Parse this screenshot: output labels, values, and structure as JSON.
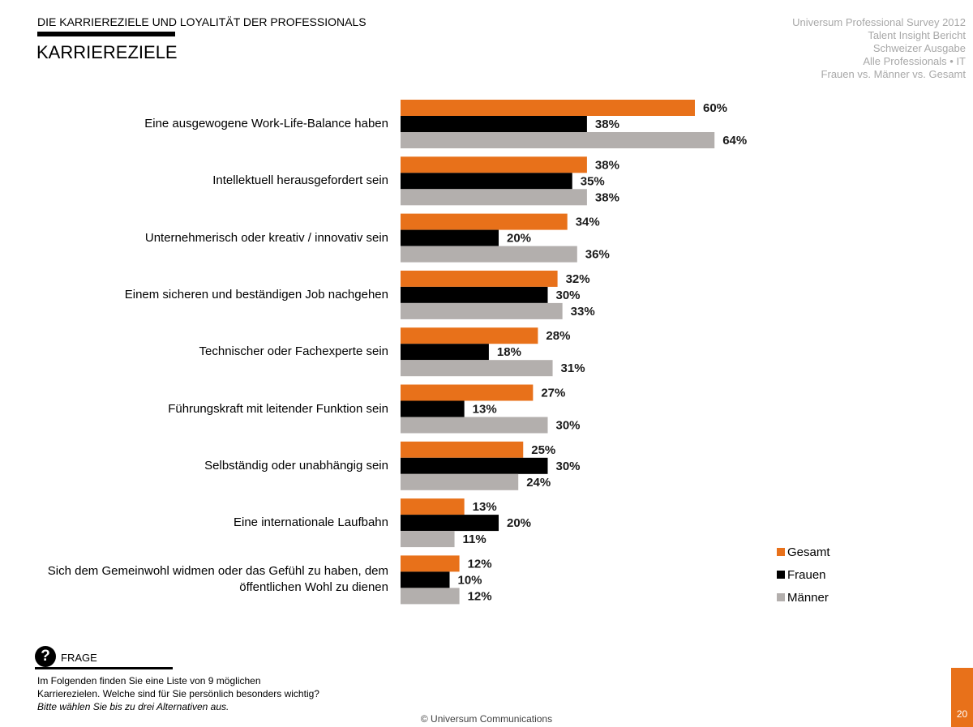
{
  "header": {
    "supertitle": "DIE KARRIEREZIELE UND LOYALITÄT DER PROFESSIONALS",
    "title": "KARRIEREZIELE",
    "meta": [
      "Universum Professional Survey 2012",
      "Talent Insight Bericht",
      "Schweizer Ausgabe",
      "Alle Professionals • IT",
      "Frauen vs. Männer vs. Gesamt"
    ]
  },
  "chart_data": {
    "type": "bar",
    "orientation": "horizontal",
    "value_suffix": "%",
    "categories": [
      "Eine ausgewogene Work-Life-Balance haben",
      "Intellektuell herausgefordert sein",
      "Unternehmerisch oder kreativ / innovativ sein",
      "Einem sicheren und beständigen Job nachgehen",
      "Technischer oder Fachexperte sein",
      "Führungskraft mit leitender Funktion sein",
      "Selbständig oder unabhängig sein",
      "Eine internationale Laufbahn",
      "Sich dem Gemeinwohl widmen oder das Gefühl zu haben, dem öffentlichen Wohl zu dienen"
    ],
    "series": [
      {
        "name": "Gesamt",
        "color": "#e8711a",
        "values": [
          60,
          38,
          34,
          32,
          28,
          27,
          25,
          13,
          12
        ]
      },
      {
        "name": "Frauen",
        "color": "#000000",
        "values": [
          38,
          35,
          20,
          30,
          18,
          13,
          30,
          20,
          10
        ]
      },
      {
        "name": "Männer",
        "color": "#b3afad",
        "values": [
          64,
          38,
          36,
          33,
          31,
          30,
          24,
          11,
          12
        ]
      }
    ],
    "legend_position": "bottom-right",
    "grid": false
  },
  "question": {
    "icon": "question-icon",
    "label": "FRAGE",
    "text_line1": "Im Folgenden finden Sie eine Liste von 9 möglichen",
    "text_line2": "Karrierezielen. Welche sind für Sie persönlich besonders wichtig?",
    "note": "Bitte wählen Sie bis zu drei Alternativen aus."
  },
  "footer": {
    "copyright": "© Universum Communications",
    "page_number": "20"
  }
}
